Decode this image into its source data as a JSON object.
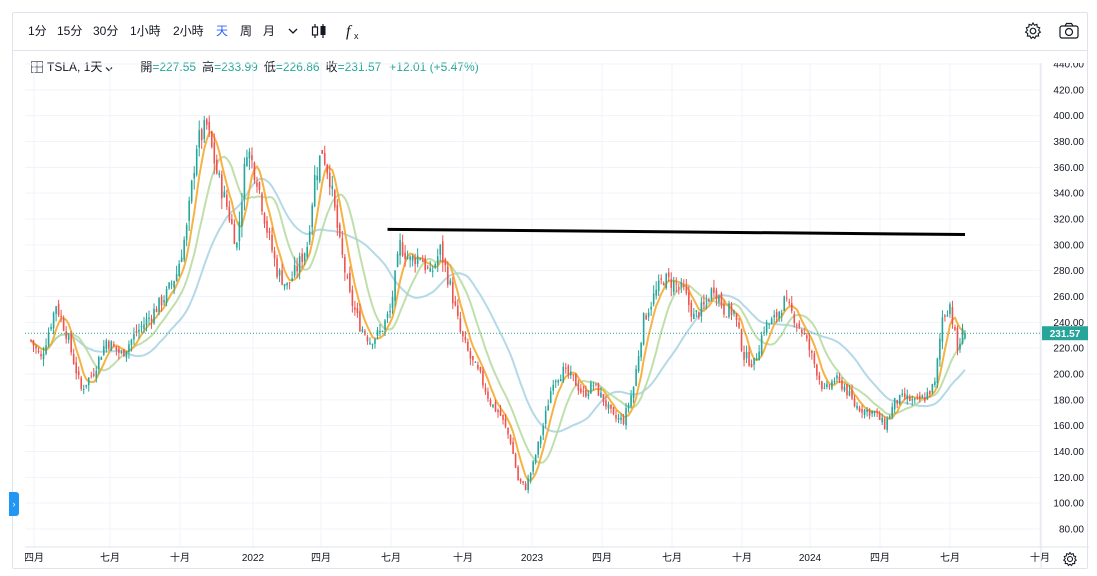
{
  "toolbar": {
    "intervals": [
      "1分",
      "15分",
      "30分",
      "1小時",
      "2小時",
      "天",
      "周",
      "月"
    ],
    "active_interval": "天",
    "icons": [
      "chevron-down-icon",
      "candlestick-icon",
      "fx-indicator-icon",
      "gear-icon",
      "camera-icon"
    ],
    "fx_label": "fx"
  },
  "legend": {
    "symbol_icon": "compare-grid-icon",
    "symbol": "TSLA, 1天",
    "open_label": "開",
    "open": "=227.55",
    "high_label": "高",
    "high": "=233.99",
    "low_label": "低",
    "low": "=226.86",
    "close_label": "收",
    "close": "=231.57",
    "change": "+12.01 (+5.47%)"
  },
  "price_tag": "231.57",
  "left_tab": "›",
  "colors": {
    "up": "#26a69a",
    "down": "#ef5350",
    "ma_short": "#f5a623",
    "ma_mid": "#b5d99c",
    "ma_long": "#a7d2e3",
    "trendline": "#000000",
    "accent": "#2962ff"
  },
  "chart_data": {
    "type": "candlestick",
    "symbol": "TSLA",
    "interval": "1天",
    "y_ticks": [
      "440.00",
      "420.00",
      "400.00",
      "380.00",
      "360.00",
      "340.00",
      "320.00",
      "300.00",
      "280.00",
      "260.00",
      "240.00",
      "220.00",
      "200.00",
      "180.00",
      "160.00",
      "140.00",
      "120.00",
      "100.00",
      "80.00"
    ],
    "ylim": [
      72,
      450
    ],
    "x_ticks": [
      "四月",
      "七月",
      "十月",
      "2022",
      "四月",
      "七月",
      "十月",
      "2023",
      "四月",
      "七月",
      "十月",
      "2024",
      "四月",
      "七月",
      "十月"
    ],
    "last_close": 231.57,
    "approx_closes": [
      [
        0,
        226
      ],
      [
        4,
        212
      ],
      [
        10,
        254
      ],
      [
        14,
        232
      ],
      [
        20,
        188
      ],
      [
        25,
        202
      ],
      [
        30,
        226
      ],
      [
        36,
        215
      ],
      [
        42,
        232
      ],
      [
        48,
        246
      ],
      [
        54,
        262
      ],
      [
        58,
        278
      ],
      [
        62,
        312
      ],
      [
        66,
        378
      ],
      [
        70,
        392
      ],
      [
        74,
        356
      ],
      [
        78,
        330
      ],
      [
        82,
        300
      ],
      [
        86,
        376
      ],
      [
        90,
        352
      ],
      [
        94,
        312
      ],
      [
        98,
        280
      ],
      [
        102,
        268
      ],
      [
        106,
        282
      ],
      [
        110,
        300
      ],
      [
        113,
        352
      ],
      [
        116,
        374
      ],
      [
        119,
        352
      ],
      [
        123,
        300
      ],
      [
        127,
        260
      ],
      [
        131,
        238
      ],
      [
        135,
        226
      ],
      [
        139,
        232
      ],
      [
        143,
        248
      ],
      [
        147,
        300
      ],
      [
        151,
        288
      ],
      [
        155,
        292
      ],
      [
        159,
        276
      ],
      [
        163,
        296
      ],
      [
        167,
        268
      ],
      [
        171,
        232
      ],
      [
        175,
        212
      ],
      [
        179,
        198
      ],
      [
        183,
        178
      ],
      [
        187,
        168
      ],
      [
        191,
        148
      ],
      [
        194,
        118
      ],
      [
        197,
        112
      ],
      [
        200,
        130
      ],
      [
        204,
        160
      ],
      [
        208,
        196
      ],
      [
        212,
        202
      ],
      [
        216,
        196
      ],
      [
        220,
        184
      ],
      [
        224,
        192
      ],
      [
        228,
        180
      ],
      [
        232,
        166
      ],
      [
        236,
        164
      ],
      [
        240,
        190
      ],
      [
        244,
        242
      ],
      [
        248,
        260
      ],
      [
        252,
        274
      ],
      [
        256,
        270
      ],
      [
        260,
        264
      ],
      [
        264,
        244
      ],
      [
        268,
        252
      ],
      [
        272,
        268
      ],
      [
        276,
        250
      ],
      [
        280,
        248
      ],
      [
        284,
        214
      ],
      [
        288,
        208
      ],
      [
        292,
        236
      ],
      [
        296,
        242
      ],
      [
        300,
        256
      ],
      [
        304,
        244
      ],
      [
        308,
        230
      ],
      [
        312,
        208
      ],
      [
        316,
        186
      ],
      [
        320,
        196
      ],
      [
        324,
        190
      ],
      [
        328,
        176
      ],
      [
        332,
        172
      ],
      [
        336,
        170
      ],
      [
        340,
        160
      ],
      [
        344,
        178
      ],
      [
        348,
        182
      ],
      [
        352,
        178
      ],
      [
        356,
        182
      ],
      [
        360,
        192
      ],
      [
        363,
        244
      ],
      [
        366,
        254
      ],
      [
        369,
        218
      ],
      [
        371,
        231.57
      ]
    ],
    "trendline": [
      [
        142,
        312
      ],
      [
        372,
        308
      ]
    ]
  }
}
